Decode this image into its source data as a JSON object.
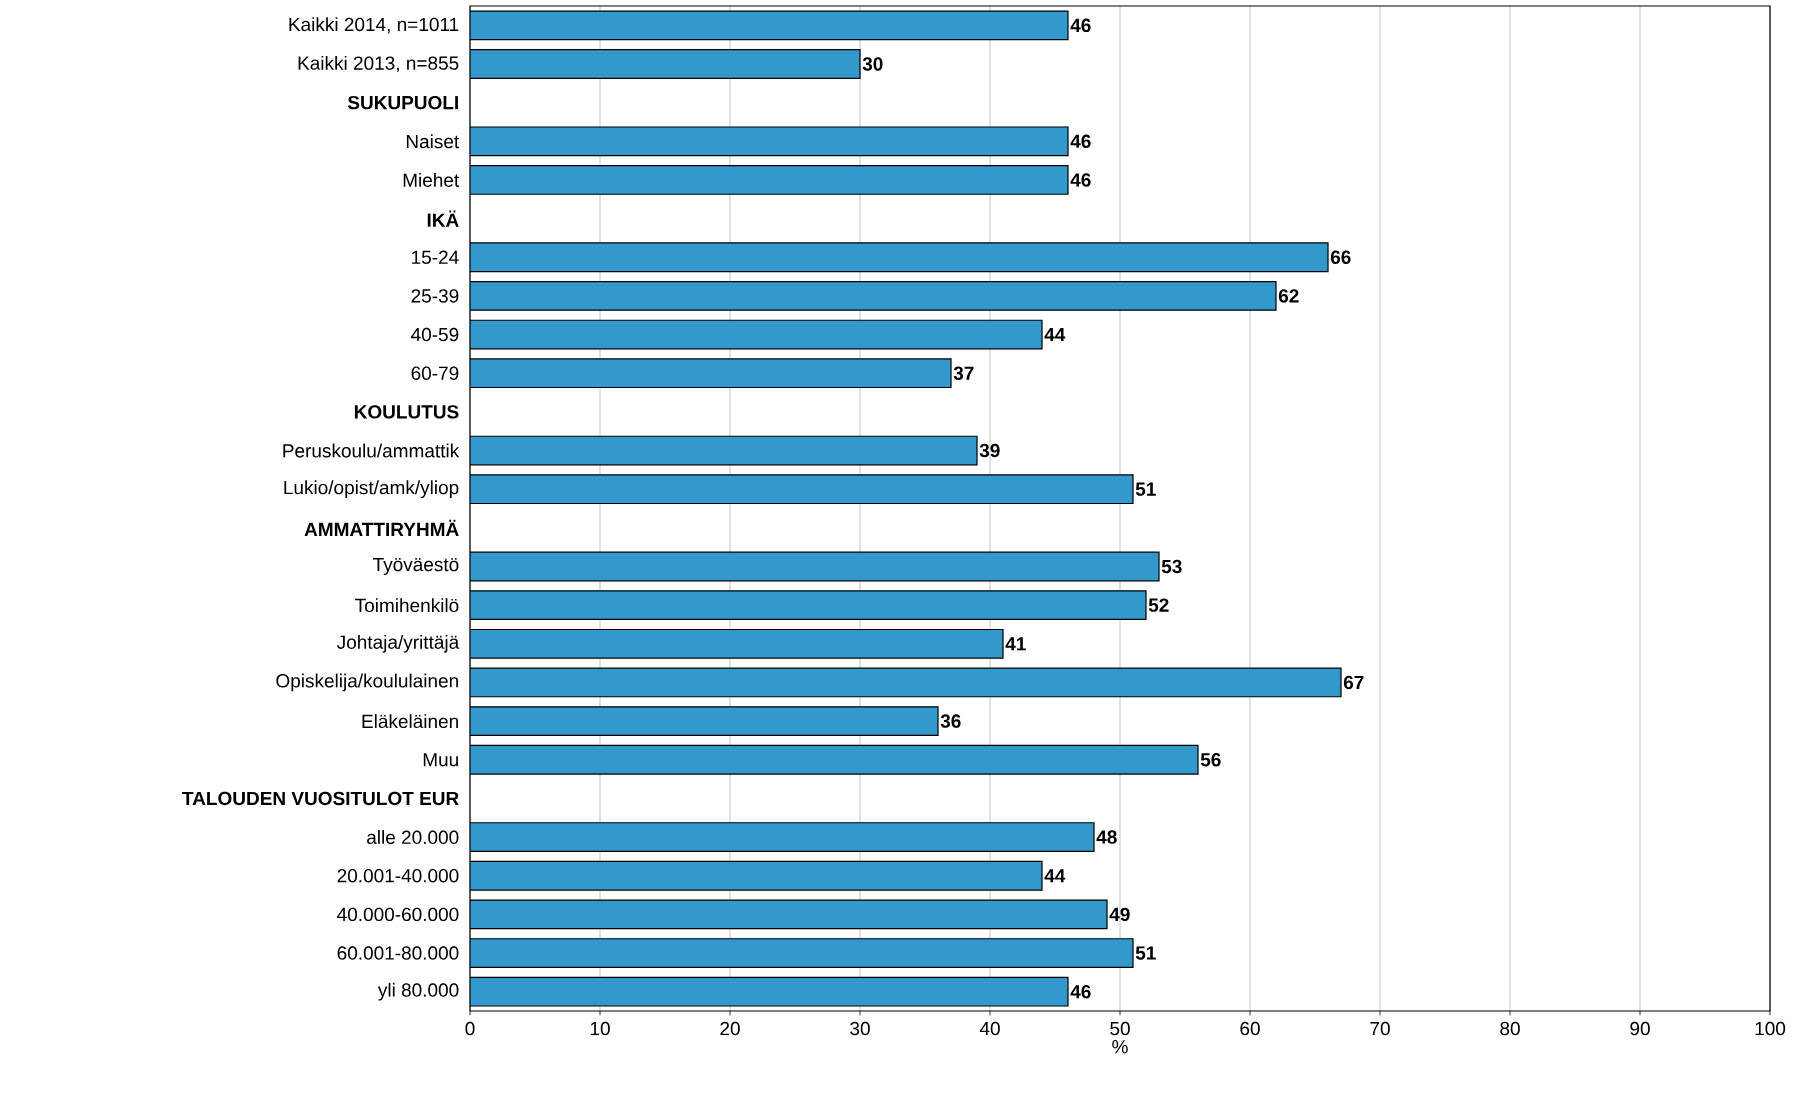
{
  "chart_data": {
    "type": "bar",
    "orientation": "horizontal",
    "xlabel": "%",
    "categories": [
      "Kaikki 2014, n=1011",
      "Kaikki 2013, n=855",
      "SUKUPUOLI",
      "Naiset",
      "Miehet",
      "IKÄ",
      "15-24",
      "25-39",
      "40-59",
      "60-79",
      "KOULUTUS",
      "Peruskoulu/ammattik",
      "Lukio/opist/amk/yliop",
      "AMMATTIRYHMÄ",
      "Työväestö",
      "Toimihenkilö",
      "Johtaja/yrittäjä",
      "Opiskelija/koululainen",
      "Eläkeläinen",
      "Muu",
      "TALOUDEN VUOSITULOT EUR",
      "alle 20.000",
      "20.001-40.000",
      "40.000-60.000",
      "60.001-80.000",
      "yli 80.000"
    ],
    "values": [
      46,
      30,
      null,
      46,
      46,
      null,
      66,
      62,
      44,
      37,
      null,
      39,
      51,
      null,
      53,
      52,
      41,
      67,
      36,
      56,
      null,
      48,
      44,
      49,
      51,
      46
    ],
    "color": "#3399cc",
    "xlim": [
      0,
      100
    ],
    "xticks": [
      0,
      10,
      20,
      30,
      40,
      50,
      60,
      70,
      80,
      90,
      100
    ],
    "grid": "x",
    "data_labels": true
  }
}
